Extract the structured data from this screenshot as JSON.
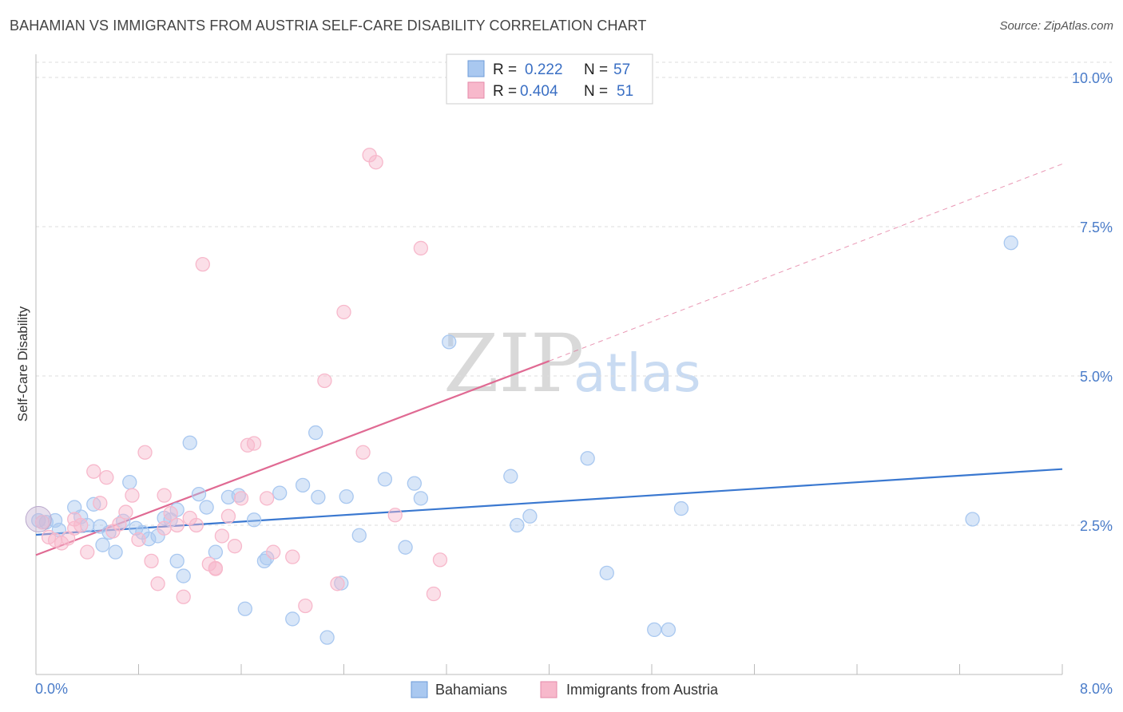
{
  "header": {
    "title": "BAHAMIAN VS IMMIGRANTS FROM AUSTRIA SELF-CARE DISABILITY CORRELATION CHART",
    "source": "Source: ZipAtlas.com"
  },
  "watermark": {
    "zip": "ZIP",
    "atlas": "atlas"
  },
  "stats_legend": {
    "rows": [
      {
        "r_label": "R =",
        "r_value": "0.222",
        "n_label": "N =",
        "n_value": "57",
        "color": "#a9c8f0"
      },
      {
        "r_label": "R =",
        "r_value": "0.404",
        "n_label": "N =",
        "n_value": "51",
        "color": "#f7b8cb"
      }
    ]
  },
  "bottom_legend": {
    "items": [
      {
        "label": "Bahamians",
        "color": "#a9c8f0"
      },
      {
        "label": "Immigrants from Austria",
        "color": "#f7b8cb"
      }
    ]
  },
  "chart_data": {
    "type": "scatter",
    "ylabel": "Self-Care Disability",
    "xlim": [
      0,
      8.0
    ],
    "ylim": [
      0,
      10.0
    ],
    "x_tick_labels": [
      "0.0%",
      "8.0%"
    ],
    "y_tick_labels": [
      "2.5%",
      "5.0%",
      "7.5%",
      "10.0%"
    ],
    "y_ticks": [
      2.5,
      5.0,
      7.5,
      10.0
    ],
    "grid": true,
    "legend": "top-center",
    "series": [
      {
        "name": "Bahamians",
        "color": "#3a78d0",
        "fill": "#a9c8f0",
        "trend": {
          "x": [
            0,
            8.0
          ],
          "y": [
            2.34,
            3.44
          ]
        },
        "points": [
          [
            0.02,
            2.58
          ],
          [
            0.08,
            2.55
          ],
          [
            0.15,
            2.58
          ],
          [
            0.18,
            2.42
          ],
          [
            0.3,
            2.8
          ],
          [
            0.35,
            2.64
          ],
          [
            0.4,
            2.5
          ],
          [
            0.45,
            2.85
          ],
          [
            0.52,
            2.17
          ],
          [
            0.57,
            2.38
          ],
          [
            0.62,
            2.05
          ],
          [
            0.68,
            2.57
          ],
          [
            0.73,
            3.22
          ],
          [
            0.78,
            2.45
          ],
          [
            0.83,
            2.38
          ],
          [
            0.88,
            2.27
          ],
          [
            0.95,
            2.32
          ],
          [
            1.0,
            2.62
          ],
          [
            1.05,
            2.59
          ],
          [
            1.1,
            2.76
          ],
          [
            1.15,
            1.65
          ],
          [
            1.2,
            3.88
          ],
          [
            1.27,
            3.02
          ],
          [
            1.33,
            2.8
          ],
          [
            1.4,
            2.05
          ],
          [
            1.5,
            2.97
          ],
          [
            1.58,
            3.0
          ],
          [
            1.63,
            1.1
          ],
          [
            1.7,
            2.59
          ],
          [
            1.78,
            1.9
          ],
          [
            1.9,
            3.04
          ],
          [
            2.0,
            0.93
          ],
          [
            2.08,
            3.17
          ],
          [
            2.18,
            4.05
          ],
          [
            2.27,
            0.62
          ],
          [
            2.38,
            1.53
          ],
          [
            2.42,
            2.98
          ],
          [
            2.52,
            2.33
          ],
          [
            2.72,
            3.27
          ],
          [
            2.88,
            2.13
          ],
          [
            2.95,
            3.2
          ],
          [
            3.0,
            2.95
          ],
          [
            3.22,
            5.57
          ],
          [
            3.7,
            3.32
          ],
          [
            3.75,
            2.5
          ],
          [
            3.85,
            2.65
          ],
          [
            4.3,
            3.62
          ],
          [
            4.45,
            1.7
          ],
          [
            4.82,
            0.75
          ],
          [
            4.93,
            0.75
          ],
          [
            5.03,
            2.78
          ],
          [
            7.3,
            2.6
          ],
          [
            7.6,
            7.23
          ],
          [
            2.2,
            2.97
          ],
          [
            1.8,
            1.95
          ],
          [
            1.1,
            1.9
          ],
          [
            0.5,
            2.48
          ]
        ]
      },
      {
        "name": "Immigrants from Austria",
        "color": "#e06a93",
        "fill": "#f7b8cb",
        "trend": {
          "x": [
            0,
            4.0
          ],
          "y": [
            2.0,
            5.25
          ]
        },
        "trend_extension": {
          "x": [
            4.0,
            8.0
          ],
          "y": [
            5.25,
            8.55
          ]
        },
        "points": [
          [
            0.05,
            2.55
          ],
          [
            0.1,
            2.3
          ],
          [
            0.15,
            2.25
          ],
          [
            0.2,
            2.2
          ],
          [
            0.25,
            2.28
          ],
          [
            0.3,
            2.45
          ],
          [
            0.35,
            2.5
          ],
          [
            0.4,
            2.05
          ],
          [
            0.45,
            3.4
          ],
          [
            0.5,
            2.87
          ],
          [
            0.55,
            3.3
          ],
          [
            0.6,
            2.4
          ],
          [
            0.65,
            2.52
          ],
          [
            0.7,
            2.72
          ],
          [
            0.75,
            3.0
          ],
          [
            0.8,
            2.26
          ],
          [
            0.85,
            3.72
          ],
          [
            0.9,
            1.9
          ],
          [
            0.95,
            1.52
          ],
          [
            1.0,
            3.0
          ],
          [
            1.05,
            2.7
          ],
          [
            1.1,
            2.5
          ],
          [
            1.15,
            1.3
          ],
          [
            1.2,
            2.62
          ],
          [
            1.25,
            2.5
          ],
          [
            1.3,
            6.87
          ],
          [
            1.35,
            1.85
          ],
          [
            1.4,
            1.77
          ],
          [
            1.45,
            2.32
          ],
          [
            1.5,
            2.65
          ],
          [
            1.55,
            2.15
          ],
          [
            1.6,
            2.95
          ],
          [
            1.65,
            3.84
          ],
          [
            1.7,
            3.87
          ],
          [
            1.8,
            2.95
          ],
          [
            1.85,
            2.05
          ],
          [
            2.0,
            1.97
          ],
          [
            2.1,
            1.15
          ],
          [
            2.25,
            4.92
          ],
          [
            2.35,
            1.52
          ],
          [
            2.4,
            6.07
          ],
          [
            2.55,
            3.72
          ],
          [
            2.6,
            8.7
          ],
          [
            2.65,
            8.58
          ],
          [
            2.8,
            2.67
          ],
          [
            3.0,
            7.14
          ],
          [
            3.1,
            1.35
          ],
          [
            3.15,
            1.92
          ],
          [
            1.0,
            2.45
          ],
          [
            0.3,
            2.6
          ],
          [
            1.4,
            1.78
          ]
        ]
      }
    ]
  }
}
